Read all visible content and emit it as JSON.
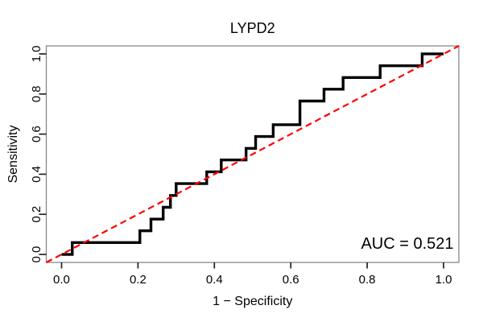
{
  "figure": {
    "title": "LYPD2",
    "auc_label": "AUC = 0.521"
  },
  "chart_data": {
    "type": "line",
    "subtype": "roc-step-curve",
    "title": "LYPD2",
    "xlabel": "1 − Specificity",
    "ylabel": "Sensitivity",
    "xlim": [
      -0.04,
      1.04
    ],
    "ylim": [
      -0.04,
      1.04
    ],
    "xticks": [
      0.0,
      0.2,
      0.4,
      0.6,
      0.8,
      1.0
    ],
    "yticks": [
      0.0,
      0.2,
      0.4,
      0.6,
      0.8,
      1.0
    ],
    "grid": false,
    "legend_position": "none",
    "annotation": {
      "text": "AUC = 0.521",
      "x": 0.905,
      "y": 0.052
    },
    "colors": {
      "roc_curve": "#000000",
      "diagonal": "#ff0000",
      "box": "#888888",
      "ticks": "#222222",
      "text": "#000000",
      "background": "#ffffff"
    },
    "series": [
      {
        "name": "ROC curve",
        "color": "#000000",
        "style": "solid",
        "stroke_width": 3.4,
        "points": [
          [
            0.0,
            0.0
          ],
          [
            0.028,
            0.0
          ],
          [
            0.028,
            0.059
          ],
          [
            0.205,
            0.059
          ],
          [
            0.205,
            0.118
          ],
          [
            0.234,
            0.118
          ],
          [
            0.234,
            0.176
          ],
          [
            0.266,
            0.176
          ],
          [
            0.266,
            0.235
          ],
          [
            0.285,
            0.235
          ],
          [
            0.285,
            0.294
          ],
          [
            0.3,
            0.294
          ],
          [
            0.3,
            0.353
          ],
          [
            0.38,
            0.353
          ],
          [
            0.38,
            0.412
          ],
          [
            0.418,
            0.412
          ],
          [
            0.418,
            0.471
          ],
          [
            0.483,
            0.471
          ],
          [
            0.483,
            0.529
          ],
          [
            0.508,
            0.529
          ],
          [
            0.508,
            0.588
          ],
          [
            0.554,
            0.588
          ],
          [
            0.554,
            0.647
          ],
          [
            0.624,
            0.647
          ],
          [
            0.624,
            0.765
          ],
          [
            0.687,
            0.765
          ],
          [
            0.687,
            0.824
          ],
          [
            0.737,
            0.824
          ],
          [
            0.737,
            0.882
          ],
          [
            0.834,
            0.882
          ],
          [
            0.834,
            0.941
          ],
          [
            0.944,
            0.941
          ],
          [
            0.944,
            1.0
          ],
          [
            1.0,
            1.0
          ]
        ]
      },
      {
        "name": "chance diagonal",
        "color": "#ff0000",
        "style": "dashed",
        "stroke_width": 2.2,
        "points": [
          [
            -0.04,
            -0.04
          ],
          [
            1.04,
            1.04
          ]
        ]
      }
    ]
  }
}
